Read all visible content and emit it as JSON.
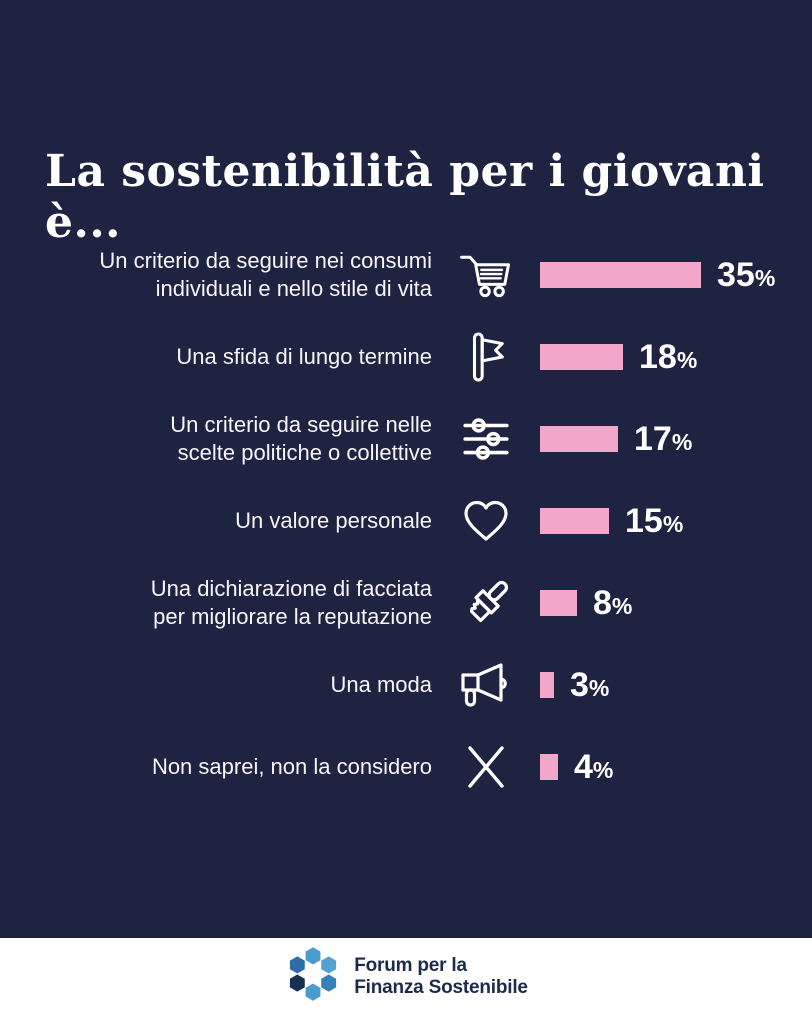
{
  "page": {
    "background_color": "#1F2342",
    "text_color": "#FFFFFF"
  },
  "title": "La sostenibilità per i giovani è...",
  "chart_data": {
    "type": "bar",
    "orientation": "horizontal",
    "title": "La sostenibilità per i giovani è...",
    "categories": [
      "Un criterio da seguire nei consumi individuali e nello stile di vita",
      "Una sfida di lungo termine",
      "Un criterio da seguire nelle scelte politiche o collettive",
      "Un valore personale",
      "Una dichiarazione di facciata per migliorare la reputazione",
      "Una moda",
      "Non saprei, non la considero"
    ],
    "values": [
      35,
      18,
      17,
      15,
      8,
      3,
      4
    ],
    "unit": "%",
    "bar_color": "#F2A6C9",
    "value_labels_shown": true,
    "axis_shown": false,
    "grid": false,
    "legend": false,
    "xlim": [
      0,
      35
    ]
  },
  "rows": [
    {
      "icon": "shopping-cart-icon",
      "label_lines": [
        "Un criterio da seguire nei consumi",
        "individuali e nello stile di vita"
      ]
    },
    {
      "icon": "flag-icon",
      "label_lines": [
        "Una sfida di lungo termine"
      ]
    },
    {
      "icon": "sliders-icon",
      "label_lines": [
        "Un criterio da seguire nelle",
        "scelte politiche o collettive"
      ]
    },
    {
      "icon": "heart-icon",
      "label_lines": [
        "Un valore personale"
      ]
    },
    {
      "icon": "paintbrush-icon",
      "label_lines": [
        "Una dichiarazione di facciata",
        "per migliorare la reputazione"
      ]
    },
    {
      "icon": "megaphone-icon",
      "label_lines": [
        "Una moda"
      ]
    },
    {
      "icon": "x-icon",
      "label_lines": [
        "Non saprei, non la considero"
      ]
    }
  ],
  "footer": {
    "logo_line1": "Forum per la",
    "logo_line2": "Finanza Sostenibile",
    "logo_text_color": "#1B2B4B",
    "logo_colors": {
      "top": "#4C9BCE",
      "upper_right": "#55A1D1",
      "lower_right": "#3580B8",
      "bottom": "#4C9BCE",
      "lower_left": "#17304F",
      "upper_left": "#2E6EA6"
    }
  }
}
